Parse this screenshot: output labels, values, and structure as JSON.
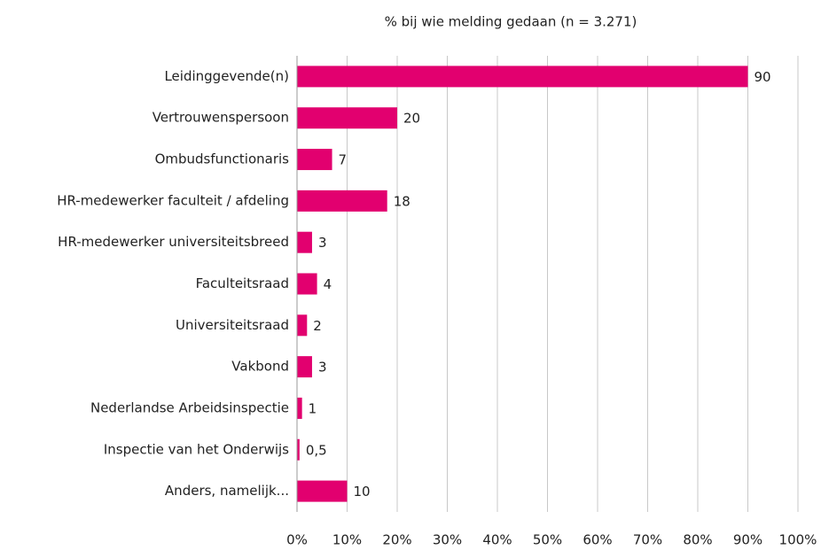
{
  "chart_data": {
    "type": "hbar",
    "title": "% bij wie melding gedaan (n = 3.271)",
    "categories": [
      "Leidinggevende(n)",
      "Vertrouwenspersoon",
      "Ombudsfunctionaris",
      "HR-medewerker faculteit / afdeling",
      "HR-medewerker universiteitsbreed",
      "Faculteitsraad",
      "Universiteitsraad",
      "Vakbond",
      "Nederlandse Arbeidsinspectie",
      "Inspectie van het Onderwijs",
      "Anders, namelijk..."
    ],
    "values": [
      90,
      20,
      7,
      18,
      3,
      4,
      2,
      3,
      1,
      0.5,
      10
    ],
    "value_labels": [
      "90",
      "20",
      "7",
      "18",
      "3",
      "4",
      "2",
      "3",
      "1",
      "0,5",
      "10"
    ],
    "color": "#e2006f",
    "xlim": [
      0,
      100
    ],
    "xticks": [
      {
        "value": 0,
        "label": "0%"
      },
      {
        "value": 10,
        "label": "10%"
      },
      {
        "value": 20,
        "label": "20%"
      },
      {
        "value": 30,
        "label": "30%"
      },
      {
        "value": 40,
        "label": "40%"
      },
      {
        "value": 50,
        "label": "50%"
      },
      {
        "value": 60,
        "label": "60%"
      },
      {
        "value": 70,
        "label": "70%"
      },
      {
        "value": 80,
        "label": "80%"
      },
      {
        "value": 90,
        "label": "90%"
      },
      {
        "value": 100,
        "label": "100%"
      }
    ],
    "grid": true
  }
}
